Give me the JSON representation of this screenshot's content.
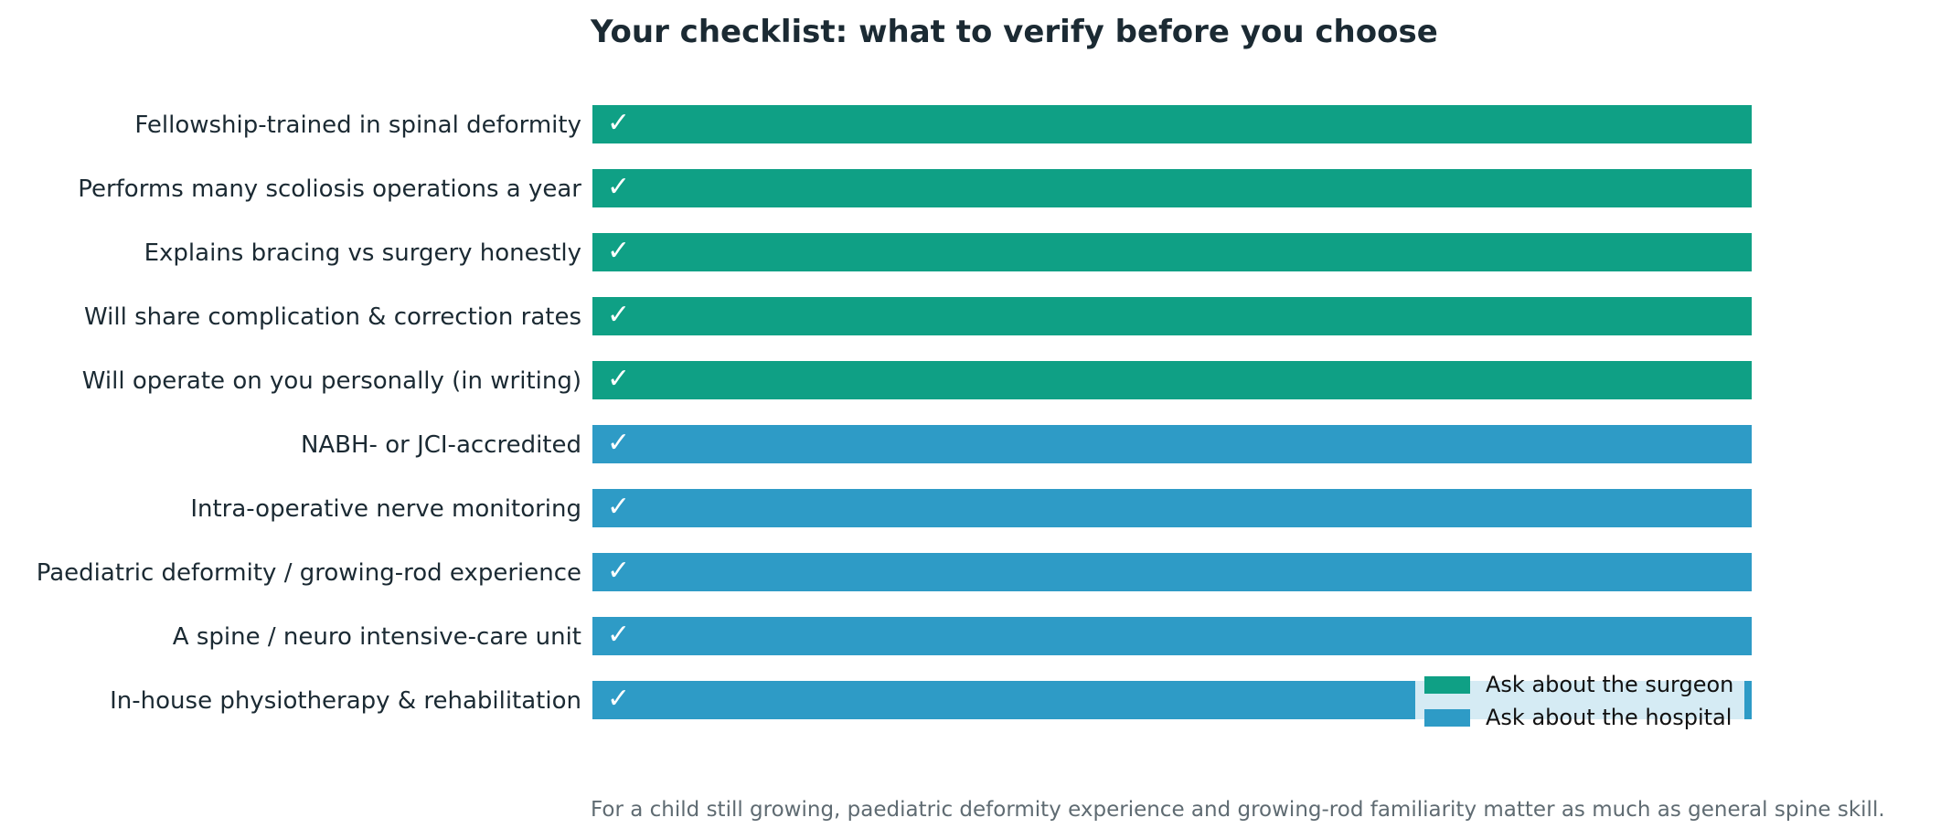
{
  "chart_data": {
    "type": "bar",
    "orientation": "horizontal",
    "title": "Your checklist: what to verify before you choose",
    "xlabel": "",
    "ylabel": "",
    "xlim": [
      0,
      1
    ],
    "grid": false,
    "legend_position": "bottom-right",
    "check_mark": "✓",
    "categories": [
      "Fellowship-trained in spinal deformity",
      "Performs many scoliosis operations a year",
      "Explains bracing vs surgery honestly",
      "Will share complication & correction rates",
      "Will operate on you personally (in writing)",
      "NABH- or JCI-accredited",
      "Intra-operative nerve monitoring",
      "Paediatric deformity / growing-rod experience",
      "A spine / neuro intensive-care unit",
      "In-house physiotherapy & rehabilitation"
    ],
    "series": [
      {
        "name": "Ask about the surgeon",
        "color": "#0fa085",
        "values": [
          1,
          1,
          1,
          1,
          1,
          0,
          0,
          0,
          0,
          0
        ]
      },
      {
        "name": "Ask about the hospital",
        "color": "#2e9bc6",
        "values": [
          0,
          0,
          0,
          0,
          0,
          1,
          1,
          1,
          1,
          1
        ]
      }
    ],
    "footnote": "For a child still growing, paediatric deformity experience and growing-rod familiarity matter as much as general spine skill."
  }
}
